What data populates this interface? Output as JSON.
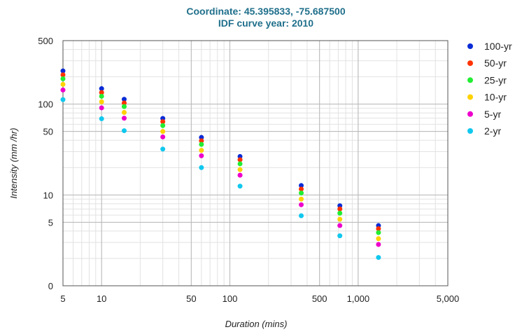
{
  "chart_data": {
    "type": "scatter",
    "title": [
      "Coordinate: 45.395833, -75.687500",
      "IDF curve year: 2010"
    ],
    "xlabel": "Duration (mins)",
    "ylabel": "Intensity (mm /hr)",
    "x_scale": "log",
    "y_scale": "log",
    "xlim": [
      5,
      5000
    ],
    "ylim": [
      0,
      500
    ],
    "x_ticks": [
      5,
      10,
      50,
      100,
      500,
      1000,
      5000
    ],
    "x_tick_labels": [
      "5",
      "10",
      "50",
      "100",
      "500",
      "1,000",
      "5,000"
    ],
    "y_ticks": [
      0,
      5,
      10,
      50,
      100,
      500
    ],
    "y_tick_labels": [
      "0",
      "5",
      "10",
      "50",
      "100",
      "500"
    ],
    "grid": true,
    "legend_position": "right",
    "x": [
      5,
      10,
      15,
      30,
      60,
      120,
      360,
      720,
      1440
    ],
    "series": [
      {
        "name": "100-yr",
        "color": "#0a2bd6",
        "values": [
          232,
          148,
          113,
          69.5,
          43,
          26.5,
          12.7,
          7.6,
          4.6
        ]
      },
      {
        "name": "50-yr",
        "color": "#ff3300",
        "values": [
          210,
          134,
          103,
          64,
          39.5,
          24.4,
          11.6,
          7.0,
          4.25
        ]
      },
      {
        "name": "25-yr",
        "color": "#22ee33",
        "values": [
          190,
          122,
          94,
          58,
          36,
          22,
          10.5,
          6.3,
          3.85
        ]
      },
      {
        "name": "10-yr",
        "color": "#ffd200",
        "values": [
          165,
          106,
          81,
          50,
          31,
          19,
          9,
          5.4,
          3.3
        ]
      },
      {
        "name": "5-yr",
        "color": "#ee00cc",
        "values": [
          143,
          91,
          70,
          43.5,
          27,
          16.5,
          7.8,
          4.6,
          2.85
        ]
      },
      {
        "name": "2-yr",
        "color": "#11c8ee",
        "values": [
          112,
          69,
          51,
          32,
          20,
          12.5,
          5.9,
          3.55,
          2.05
        ]
      }
    ]
  }
}
